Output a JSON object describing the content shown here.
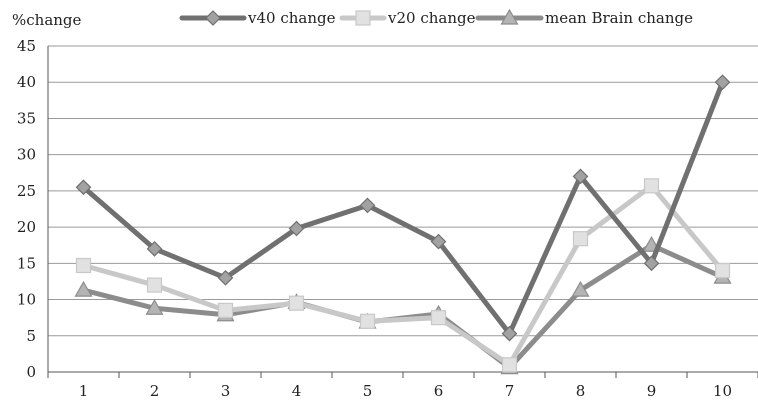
{
  "chart_data": {
    "type": "line",
    "ylabel": "%change",
    "x": [
      "1",
      "2",
      "3",
      "4",
      "5",
      "6",
      "7",
      "8",
      "9",
      "10"
    ],
    "ylim": [
      0,
      45
    ],
    "yticks": [
      "0",
      "5",
      "10",
      "15",
      "20",
      "25",
      "30",
      "35",
      "40",
      "45"
    ],
    "grid": true,
    "legend_position": "top",
    "series": [
      {
        "name": "v40 change",
        "marker": "diamond",
        "color": "#707070",
        "values": [
          25.5,
          17,
          13,
          19.8,
          23,
          18,
          5.3,
          27,
          15,
          40
        ]
      },
      {
        "name": "v20 change",
        "marker": "square",
        "color": "#c8c8c8",
        "values": [
          14.7,
          12,
          8.5,
          9.5,
          7,
          7.5,
          1,
          18.4,
          25.7,
          14
        ]
      },
      {
        "name": "mean Brain change",
        "marker": "triangle",
        "color": "#8c8c8c",
        "values": [
          11.3,
          8.8,
          7.9,
          9.6,
          6.9,
          8,
          0.6,
          11.3,
          17.5,
          13.1
        ]
      }
    ]
  }
}
